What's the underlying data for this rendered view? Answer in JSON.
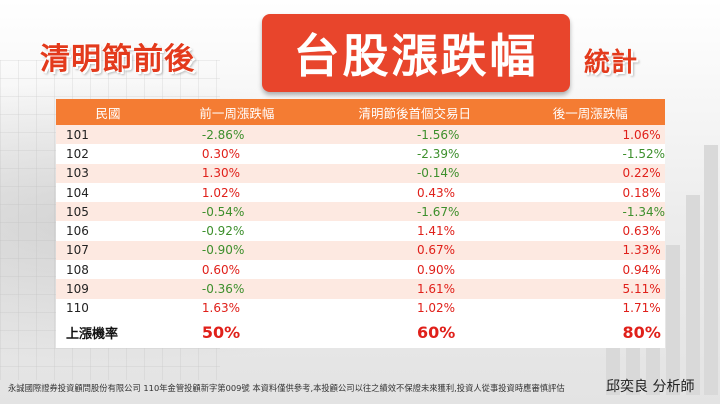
{
  "title": {
    "left": "清明節前後",
    "main": "台股漲跌幅",
    "right": "統計"
  },
  "table": {
    "headers": [
      "民國",
      "前一周漲跌幅",
      "清明節後首個交易日",
      "後一周漲跌幅"
    ],
    "rows": [
      {
        "year": "101",
        "before": "-2.86%",
        "first_day": "-1.56%",
        "after": "1.06%"
      },
      {
        "year": "102",
        "before": "0.30%",
        "first_day": "-2.39%",
        "after": "-1.52%"
      },
      {
        "year": "103",
        "before": "1.30%",
        "first_day": "-0.14%",
        "after": "0.22%"
      },
      {
        "year": "104",
        "before": "1.02%",
        "first_day": "0.43%",
        "after": "0.18%"
      },
      {
        "year": "105",
        "before": "-0.54%",
        "first_day": "-1.67%",
        "after": "-1.34%"
      },
      {
        "year": "106",
        "before": "-0.92%",
        "first_day": "1.41%",
        "after": "0.63%"
      },
      {
        "year": "107",
        "before": "-0.90%",
        "first_day": "0.67%",
        "after": "1.33%"
      },
      {
        "year": "108",
        "before": "0.60%",
        "first_day": "0.90%",
        "after": "0.94%"
      },
      {
        "year": "109",
        "before": "-0.36%",
        "first_day": "1.61%",
        "after": "5.11%"
      },
      {
        "year": "110",
        "before": "1.63%",
        "first_day": "1.02%",
        "after": "1.71%"
      }
    ],
    "summary": {
      "label": "上漲機率",
      "before": "50%",
      "first_day": "60%",
      "after": "80%"
    }
  },
  "footer": {
    "disclaimer": "永誠國際證券投資顧問股份有限公司  110年金管投顧新字第009號    本資料僅供參考,本投顧公司以往之績效不保證未來獲利,投資人從事投資時應審慎評估",
    "analyst": "邱奕良 分析師"
  },
  "colors": {
    "accent": "#e8452c",
    "header_bg": "#f47c33",
    "row_alt": "#fde9e1",
    "positive": "#e0201a",
    "negative": "#3d8f2c"
  }
}
